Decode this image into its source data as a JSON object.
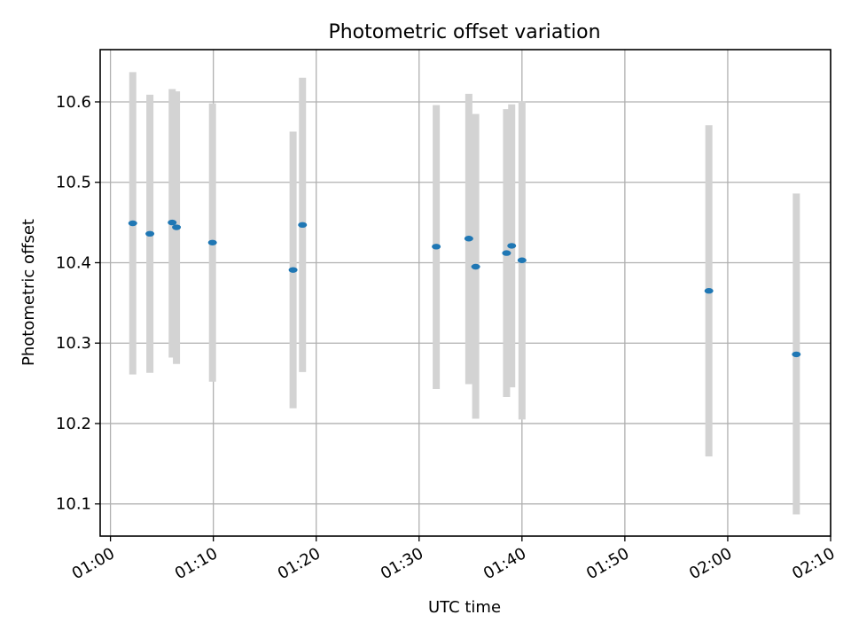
{
  "chart_data": {
    "type": "scatter",
    "title": "Photometric offset variation",
    "xlabel": "UTC time",
    "ylabel": "Photometric offset",
    "x_type": "time",
    "xlim": [
      "00:59",
      "02:10"
    ],
    "ylim": [
      10.06,
      10.665
    ],
    "x_ticks": [
      "01:00",
      "01:10",
      "01:20",
      "01:30",
      "01:40",
      "01:50",
      "02:00",
      "02:10"
    ],
    "y_ticks": [
      "10.1",
      "10.2",
      "10.3",
      "10.4",
      "10.5",
      "10.6"
    ],
    "grid": true,
    "colors": {
      "point": "#1f77b4",
      "errorbar": "#d3d3d3"
    },
    "points": [
      {
        "t": "01:02:10",
        "y": 10.449,
        "low": 10.261,
        "high": 10.637
      },
      {
        "t": "01:03:50",
        "y": 10.436,
        "low": 10.263,
        "high": 10.609
      },
      {
        "t": "01:06:00",
        "y": 10.45,
        "low": 10.282,
        "high": 10.616
      },
      {
        "t": "01:06:25",
        "y": 10.444,
        "low": 10.274,
        "high": 10.613
      },
      {
        "t": "01:09:55",
        "y": 10.425,
        "low": 10.252,
        "high": 10.598
      },
      {
        "t": "01:17:45",
        "y": 10.391,
        "low": 10.219,
        "high": 10.563
      },
      {
        "t": "01:18:40",
        "y": 10.447,
        "low": 10.264,
        "high": 10.63
      },
      {
        "t": "01:31:40",
        "y": 10.42,
        "low": 10.243,
        "high": 10.596
      },
      {
        "t": "01:34:50",
        "y": 10.43,
        "low": 10.249,
        "high": 10.61
      },
      {
        "t": "01:35:30",
        "y": 10.395,
        "low": 10.206,
        "high": 10.585
      },
      {
        "t": "01:38:30",
        "y": 10.412,
        "low": 10.233,
        "high": 10.591
      },
      {
        "t": "01:39:00",
        "y": 10.421,
        "low": 10.245,
        "high": 10.597
      },
      {
        "t": "01:40:00",
        "y": 10.403,
        "low": 10.205,
        "high": 10.601
      },
      {
        "t": "01:58:10",
        "y": 10.365,
        "low": 10.159,
        "high": 10.571
      },
      {
        "t": "02:06:40",
        "y": 10.286,
        "low": 10.087,
        "high": 10.486
      }
    ]
  }
}
